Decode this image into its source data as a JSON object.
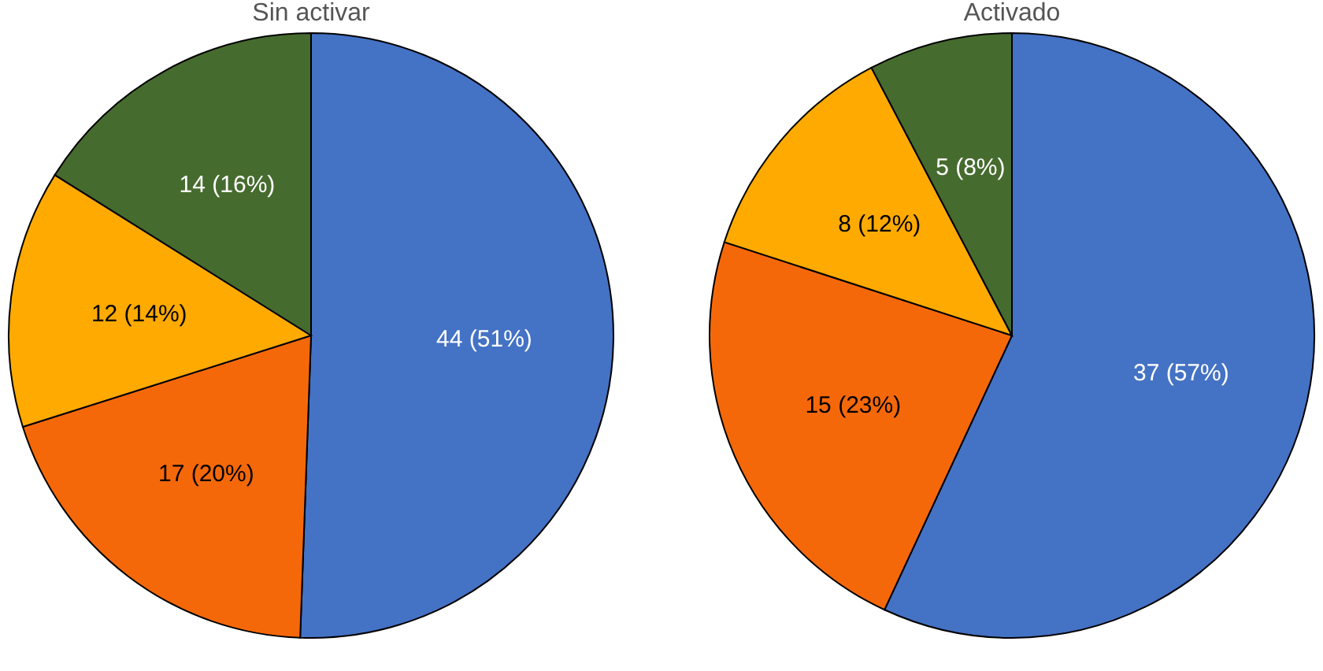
{
  "chart_data": [
    {
      "type": "pie",
      "title": "Sin activar",
      "categories": [
        null,
        null,
        null,
        null
      ],
      "values": [
        44,
        17,
        12,
        14
      ],
      "colors": [
        "#4472c4",
        "#f5680a",
        "#ffaa00",
        "#466b2e"
      ],
      "value_labels": [
        "44 (51%)",
        "17 (20%)",
        "12 (14%)",
        "14 (16%)"
      ],
      "legend": false
    },
    {
      "type": "pie",
      "title": "Activado",
      "categories": [
        null,
        null,
        null,
        null
      ],
      "values": [
        37,
        15,
        8,
        5
      ],
      "colors": [
        "#4472c4",
        "#f5680a",
        "#ffaa00",
        "#466b2e"
      ],
      "value_labels": [
        "37 (57%)",
        "15 (23%)",
        "8 (12%)",
        "5 (8%)"
      ],
      "legend": false
    }
  ]
}
